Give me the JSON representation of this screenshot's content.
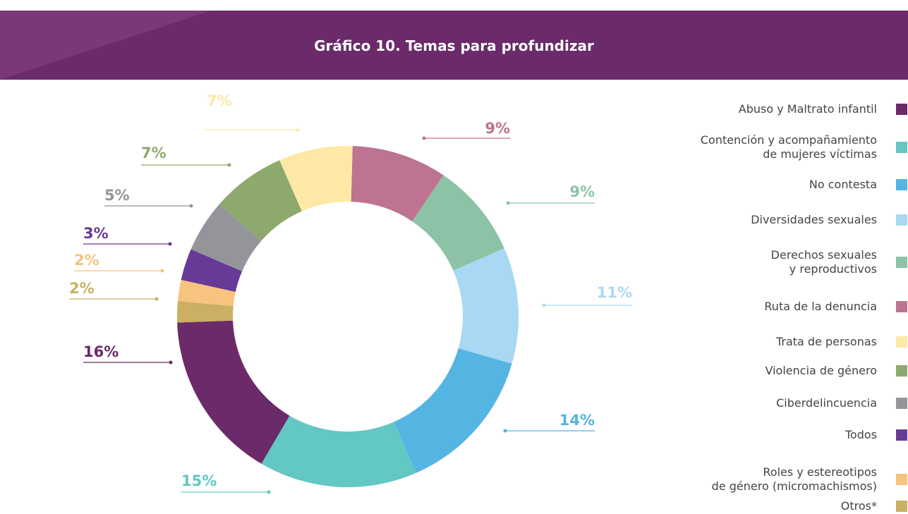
{
  "chart_data": {
    "type": "donut",
    "title": "Gráfico 10. Temas para profundizar",
    "categories": [
      "Abuso y Maltrato infantil",
      "Contención y acompañamiento\nde mujeres víctimas",
      "No contesta",
      "Diversidades sexuales",
      "Derechos sexuales\ny reproductivos",
      "Ruta de la denuncia",
      "Trata de personas",
      "Violencia de género",
      "Ciberdelincuencia",
      "Todos",
      "Roles y estereotipos\nde género (micromachismos)",
      "Otros*"
    ],
    "values": [
      16,
      15,
      14,
      11,
      9,
      9,
      7,
      7,
      5,
      3,
      2,
      2
    ],
    "value_labels": [
      "16%",
      "15%",
      "14%",
      "11%",
      "9%",
      "9%",
      "7%",
      "7%",
      "5%",
      "3%",
      "2%",
      "2%"
    ],
    "colors": [
      "#6b2a6a",
      "#63c7c4",
      "#55b5e2",
      "#a8d8f3",
      "#8cc3a6",
      "#bd7391",
      "#fde8a5",
      "#8ea96e",
      "#94959a",
      "#673a98",
      "#f8c37e",
      "#cbaf63"
    ]
  }
}
